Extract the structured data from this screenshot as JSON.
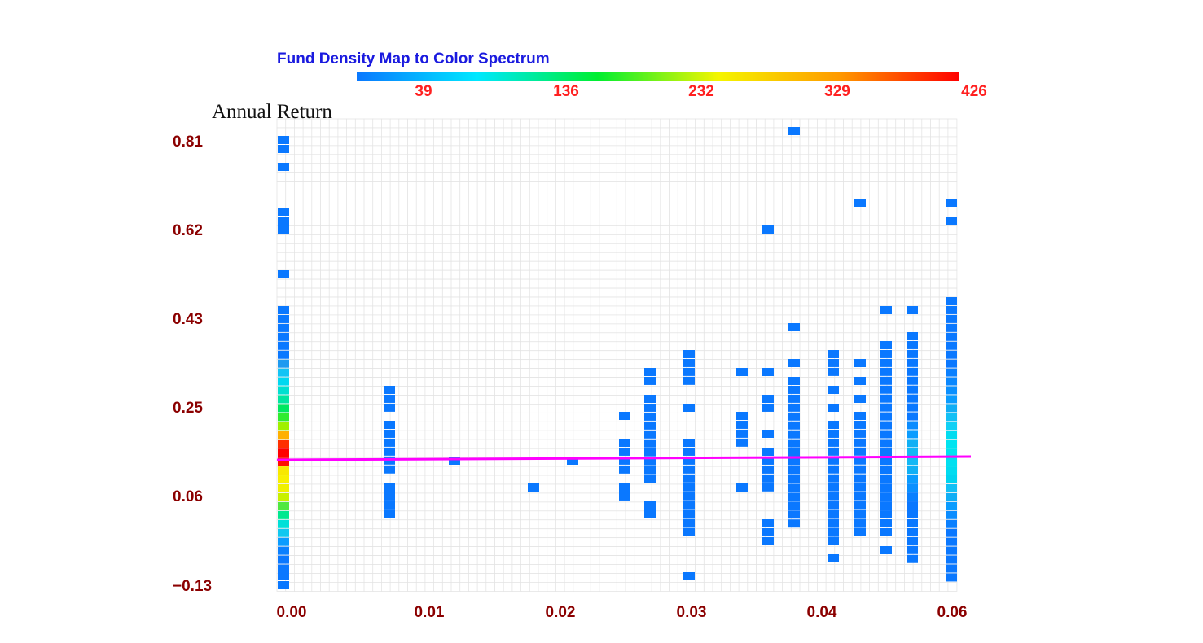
{
  "chart_data": {
    "type": "heatmap",
    "title": "Fund Density Map to Color Spectrum",
    "ylabel": "Annual Return",
    "xlabel": "",
    "xlim": [
      0.0,
      0.06
    ],
    "ylim": [
      -0.13,
      0.81
    ],
    "x_ticks": [
      "0.00",
      "0.01",
      "0.02",
      "0.03",
      "0.04",
      "0.06"
    ],
    "y_ticks": [
      "0.81",
      "0.62",
      "0.43",
      "0.25",
      "0.06",
      "−0.13"
    ],
    "colorbar": {
      "min": 0,
      "max": 426,
      "tick_labels": [
        "39",
        "136",
        "232",
        "329",
        "426"
      ],
      "colors": [
        "#0a78ff",
        "#00e8ff",
        "#00ee30",
        "#f5f500",
        "#ff9a00",
        "#ff0000"
      ]
    },
    "grid": true,
    "line": {
      "color": "#ff00ff",
      "label": ""
    },
    "colors": {
      "title": "#1a1adf",
      "ticks": "#8b0000",
      "colorbar_ticks": "#ff2020",
      "line": "#ff00ff"
    }
  }
}
